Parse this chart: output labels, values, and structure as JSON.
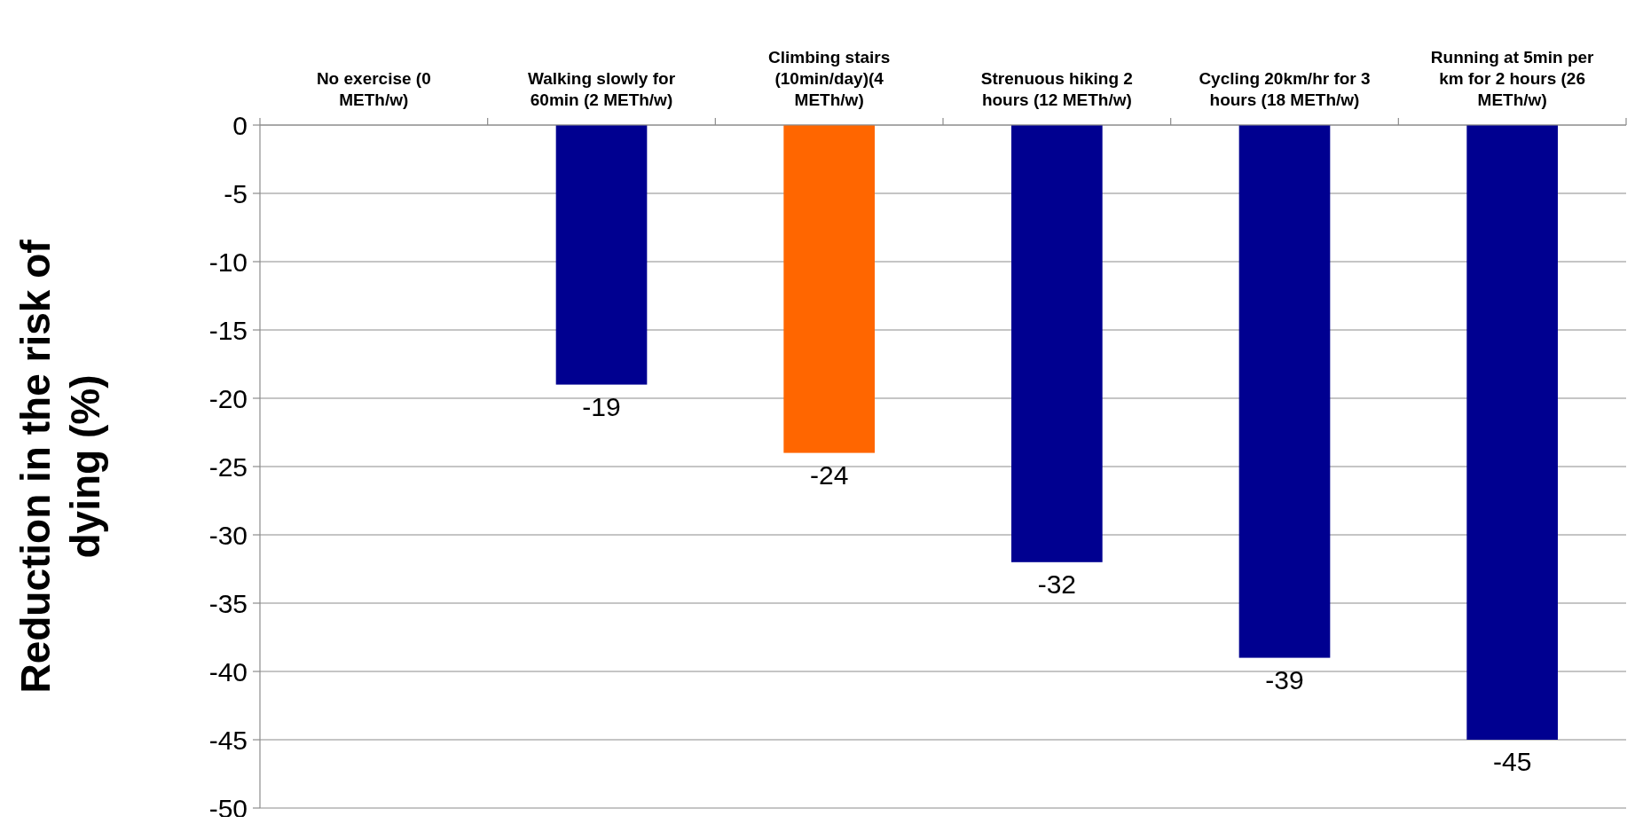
{
  "chart_data": {
    "type": "bar",
    "ylabel": "Reduction in the risk of dying (%)",
    "categories": [
      "No exercise (0 METh/w)",
      "Walking slowly for 60min (2 METh/w)",
      "Climbing stairs (10min/day)(4 METh/w)",
      "Strenuous hiking 2 hours (12 METh/w)",
      "Cycling 20km/hr for 3 hours (18 METh/w)",
      "Running at 5min per km for 2 hours (26 METh/w)"
    ],
    "values": [
      0,
      -19,
      -24,
      -32,
      -39,
      -45
    ],
    "colors": [
      "#000090",
      "#000090",
      "#ff6600",
      "#000090",
      "#000090",
      "#000090"
    ],
    "value_labels": [
      null,
      "-19",
      "-24",
      "-32",
      "-39",
      "-45"
    ],
    "ylim": [
      -50,
      0
    ],
    "yticks": [
      0,
      -5,
      -10,
      -15,
      -20,
      -25,
      -30,
      -35,
      -40,
      -45,
      -50
    ],
    "grid": "y"
  }
}
